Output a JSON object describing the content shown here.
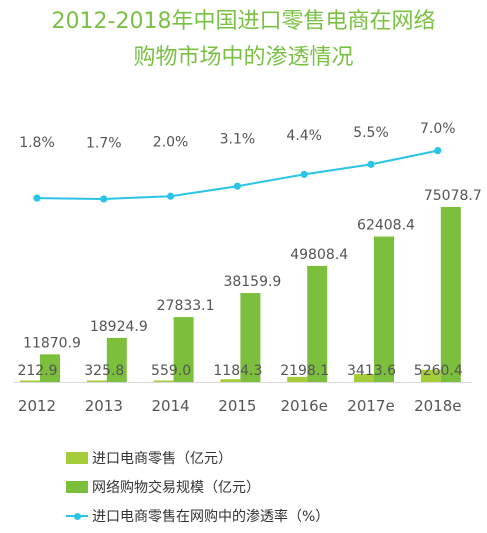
{
  "title_line1": "2012-2018年中国进口零售电商在网络",
  "title_line2": "购物市场中的渗透情况",
  "chart_data": {
    "type": "bar",
    "categories": [
      "2012",
      "2013",
      "2014",
      "2015",
      "2016e",
      "2017e",
      "2018e"
    ],
    "series": [
      {
        "name": "进口电商零售（亿元）",
        "type": "bar",
        "color": "#a4cd39",
        "values": [
          212.9,
          325.8,
          559.0,
          1184.3,
          2198.1,
          3413.6,
          5260.4
        ],
        "labels": [
          "212.9",
          "325.8",
          "559.0",
          "1184.3",
          "2198.1",
          "3413.6",
          "5260.4"
        ]
      },
      {
        "name": "网络购物交易规模（亿元）",
        "type": "bar",
        "color": "#7cbf3c",
        "values": [
          11870.9,
          18924.9,
          27833.1,
          38159.9,
          49808.4,
          62408.4,
          75078.7
        ],
        "labels": [
          "11870.9",
          "18924.9",
          "27833.1",
          "38159.9",
          "49808.4",
          "62408.4",
          "75078.7"
        ]
      },
      {
        "name": "进口电商零售在网购中的渗透率（%）",
        "type": "line",
        "color": "#29c4e6",
        "values": [
          1.8,
          1.7,
          2.0,
          3.1,
          4.4,
          5.5,
          7.0
        ],
        "labels": [
          "1.8%",
          "1.7%",
          "2.0%",
          "3.1%",
          "4.4%",
          "5.5%",
          "7.0%"
        ]
      }
    ],
    "legend_position": "bottom-left",
    "grid": false
  }
}
